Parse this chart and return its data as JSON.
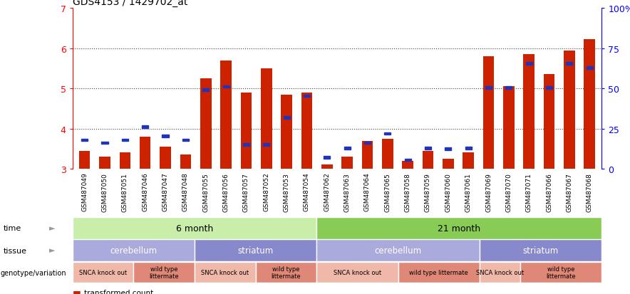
{
  "title": "GDS4153 / 1429702_at",
  "samples": [
    "GSM487049",
    "GSM487050",
    "GSM487051",
    "GSM487046",
    "GSM487047",
    "GSM487048",
    "GSM487055",
    "GSM487056",
    "GSM487057",
    "GSM487052",
    "GSM487053",
    "GSM487054",
    "GSM487062",
    "GSM487063",
    "GSM487064",
    "GSM487065",
    "GSM487058",
    "GSM487059",
    "GSM487060",
    "GSM487061",
    "GSM487069",
    "GSM487070",
    "GSM487071",
    "GSM487066",
    "GSM487067",
    "GSM487068"
  ],
  "red_values": [
    3.45,
    3.3,
    3.4,
    3.8,
    3.55,
    3.35,
    5.25,
    5.7,
    4.9,
    5.5,
    4.85,
    4.9,
    3.1,
    3.3,
    3.7,
    3.75,
    3.2,
    3.45,
    3.25,
    3.4,
    5.8,
    5.05,
    5.85,
    5.35,
    5.95,
    6.22
  ],
  "blue_values": [
    3.72,
    3.65,
    3.72,
    4.05,
    3.82,
    3.72,
    4.97,
    5.05,
    3.6,
    3.6,
    4.28,
    4.82,
    3.28,
    3.52,
    3.65,
    3.88,
    3.22,
    3.52,
    3.5,
    3.52,
    5.02,
    5.02,
    5.62,
    5.02,
    5.62,
    5.52
  ],
  "ymin": 3.0,
  "ymax": 7.0,
  "yticks_left": [
    3,
    4,
    5,
    6,
    7
  ],
  "yticks_right": [
    0,
    25,
    50,
    75,
    100
  ],
  "ytick_labels_right": [
    "0",
    "25",
    "50",
    "75",
    "100%"
  ],
  "bar_color": "#cc2200",
  "dot_color": "#2233bb",
  "grid_color": "#555555",
  "color_green_6m": "#c8eeaa",
  "color_green_21m": "#88cc55",
  "color_purple_light": "#aaaadd",
  "color_purple_dark": "#8888cc",
  "color_pink_light": "#f0b8a8",
  "color_pink_dark": "#e08878",
  "tissue_spans": [
    [
      0,
      6,
      "cerebellum",
      "#aaaadd"
    ],
    [
      6,
      6,
      "striatum",
      "#8888cc"
    ],
    [
      12,
      8,
      "cerebellum",
      "#aaaadd"
    ],
    [
      20,
      6,
      "striatum",
      "#8888cc"
    ]
  ],
  "geno_spans": [
    [
      0,
      3,
      "SNCA knock out",
      "#f0b8a8"
    ],
    [
      3,
      3,
      "wild type\nlittermate",
      "#e08878"
    ],
    [
      6,
      3,
      "SNCA knock out",
      "#f0b8a8"
    ],
    [
      9,
      3,
      "wild type\nlittermate",
      "#e08878"
    ],
    [
      12,
      4,
      "SNCA knock out",
      "#f0b8a8"
    ],
    [
      16,
      4,
      "wild type littermate",
      "#e08878"
    ],
    [
      20,
      2,
      "SNCA knock out",
      "#f0b8a8"
    ],
    [
      22,
      4,
      "wild type\nlittermate",
      "#e08878"
    ]
  ]
}
